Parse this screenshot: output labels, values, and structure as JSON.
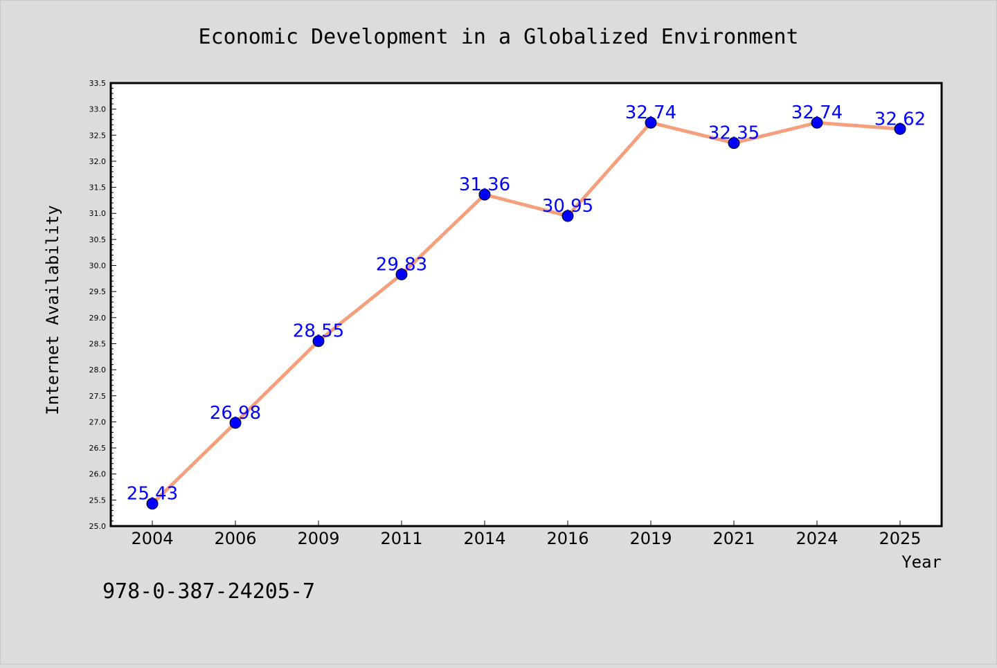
{
  "chart_data": {
    "type": "line",
    "title": "Economic Development in a Globalized Environment",
    "xlabel": "Year",
    "ylabel": "Internet Availability",
    "categories": [
      "2004",
      "2006",
      "2009",
      "2011",
      "2014",
      "2016",
      "2019",
      "2021",
      "2024",
      "2025"
    ],
    "series": [
      {
        "values": [
          25.43,
          26.98,
          28.55,
          29.83,
          31.36,
          30.95,
          32.74,
          32.35,
          32.74,
          32.62
        ],
        "data_labels": [
          "25.43",
          "26.98",
          "28.55",
          "29.83",
          "31.36",
          "30.95",
          "32.74",
          "32.35",
          "32.74",
          "32.62"
        ],
        "line_color": "#f4a07c",
        "marker_color": "#0000ff"
      }
    ],
    "ylim": [
      25.0,
      33.5
    ],
    "yticks": [
      "25.0",
      "25.5",
      "26.0",
      "26.5",
      "27.0",
      "27.5",
      "28.0",
      "28.5",
      "29.0",
      "29.5",
      "30.0",
      "30.5",
      "31.0",
      "31.5",
      "32.0",
      "32.5",
      "33.0",
      "33.5"
    ],
    "grid": false,
    "legend": "none"
  },
  "footer": {
    "code": "978-0-387-24205-7"
  },
  "colors": {
    "background": "#dcdcdc",
    "plot_area": "#ffffff",
    "frame": "#000000",
    "line": "#f4a07c",
    "marker": "#0000ff",
    "data_label": "#0000ff"
  }
}
